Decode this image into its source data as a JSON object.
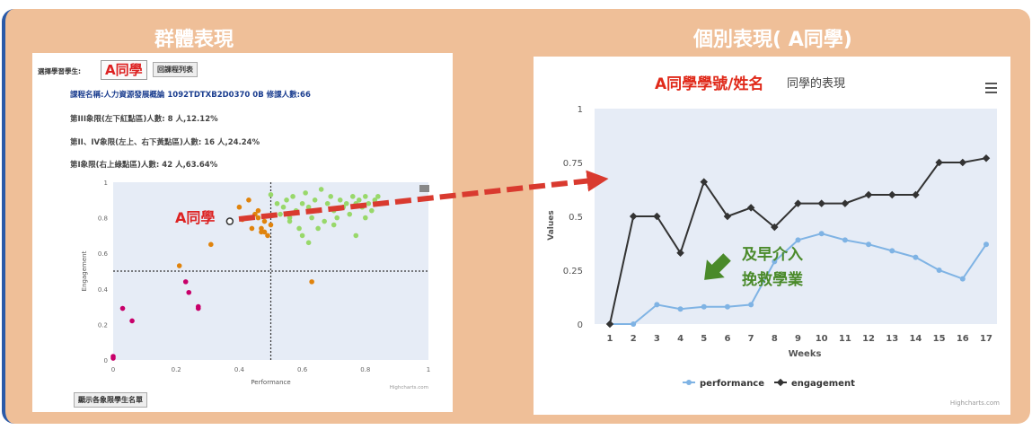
{
  "titles": {
    "group": "群體表現",
    "individual": "個別表現( A同學)"
  },
  "left": {
    "select_label": "選擇學習學生:",
    "selected_student": "A同學",
    "back_button": "回課程列表",
    "course_line": "課程名稱:人力資源發展概論 1092TDTXB2D0370 0B 修課人數:66",
    "stat1": "第III象限(左下紅點區)人數: 8 人,12.12%",
    "stat2": "第II、IV象限(左上、右下黃點區)人數: 16 人,24.24%",
    "stat3": "第I象限(右上綠點區)人數: 42 人,63.64%",
    "bottom_button": "顯示各象限學生名單",
    "credit": "Highcharts.com",
    "point_label": "A同學"
  },
  "right": {
    "overlay_title": "A同學學號/姓名",
    "chart_title_suffix": "同學的表現",
    "callout_line1": "及早介入",
    "callout_line2": "挽救學業",
    "credit": "Highcharts.com"
  },
  "colors": {
    "red": "#c8006a",
    "orange": "#e0830c",
    "green": "#98d86a",
    "performance": "#7fb3e4",
    "engagement": "#333333",
    "arrow": "#d93a2f",
    "callout": "#4a8a2a"
  },
  "chart_data": [
    {
      "type": "scatter",
      "xlabel": "Performance",
      "ylabel": "Engagement",
      "xlim": [
        0,
        1
      ],
      "ylim": [
        0,
        1
      ],
      "xticks": [
        "0",
        "0.2",
        "0.4",
        "0.6",
        "0.8",
        "1"
      ],
      "yticks": [
        "0",
        "0.2",
        "0.4",
        "0.6",
        "0.8",
        "1"
      ],
      "reference_lines": {
        "x": 0.5,
        "y": 0.5
      },
      "series": [
        {
          "color": "red",
          "points": [
            [
              0,
              0.01
            ],
            [
              0,
              0.02
            ],
            [
              0.03,
              0.29
            ],
            [
              0.06,
              0.22
            ],
            [
              0.23,
              0.44
            ],
            [
              0.24,
              0.38
            ],
            [
              0.27,
              0.29
            ],
            [
              0.27,
              0.3
            ]
          ]
        },
        {
          "color": "orange",
          "points": [
            [
              0.21,
              0.53
            ],
            [
              0.31,
              0.65
            ],
            [
              0.4,
              0.86
            ],
            [
              0.43,
              0.9
            ],
            [
              0.45,
              0.82
            ],
            [
              0.46,
              0.8
            ],
            [
              0.47,
              0.74
            ],
            [
              0.47,
              0.72
            ],
            [
              0.48,
              0.78
            ],
            [
              0.49,
              0.7
            ],
            [
              0.5,
              0.76
            ],
            [
              0.44,
              0.74
            ],
            [
              0.46,
              0.84
            ],
            [
              0.48,
              0.72
            ],
            [
              0.63,
              0.44
            ],
            [
              0.41,
              0.79
            ]
          ]
        },
        {
          "color": "green",
          "points": [
            [
              0.5,
              0.93
            ],
            [
              0.52,
              0.88
            ],
            [
              0.53,
              0.82
            ],
            [
              0.54,
              0.86
            ],
            [
              0.55,
              0.9
            ],
            [
              0.56,
              0.8
            ],
            [
              0.57,
              0.92
            ],
            [
              0.58,
              0.84
            ],
            [
              0.59,
              0.74
            ],
            [
              0.6,
              0.88
            ],
            [
              0.61,
              0.94
            ],
            [
              0.62,
              0.86
            ],
            [
              0.63,
              0.8
            ],
            [
              0.64,
              0.9
            ],
            [
              0.65,
              0.84
            ],
            [
              0.66,
              0.96
            ],
            [
              0.67,
              0.78
            ],
            [
              0.68,
              0.88
            ],
            [
              0.69,
              0.92
            ],
            [
              0.7,
              0.84
            ],
            [
              0.71,
              0.8
            ],
            [
              0.72,
              0.9
            ],
            [
              0.73,
              0.86
            ],
            [
              0.74,
              0.88
            ],
            [
              0.75,
              0.82
            ],
            [
              0.76,
              0.92
            ],
            [
              0.77,
              0.88
            ],
            [
              0.78,
              0.9
            ],
            [
              0.79,
              0.86
            ],
            [
              0.8,
              0.92
            ],
            [
              0.81,
              0.88
            ],
            [
              0.82,
              0.84
            ],
            [
              0.83,
              0.9
            ],
            [
              0.84,
              0.92
            ],
            [
              0.85,
              0.88
            ],
            [
              0.56,
              0.78
            ],
            [
              0.6,
              0.7
            ],
            [
              0.62,
              0.66
            ],
            [
              0.65,
              0.74
            ],
            [
              0.7,
              0.76
            ],
            [
              0.77,
              0.7
            ],
            [
              0.8,
              0.8
            ]
          ]
        }
      ],
      "highlight": [
        0.37,
        0.78
      ]
    },
    {
      "type": "line",
      "xlabel": "Weeks",
      "ylabel": "Values",
      "ylim": [
        0,
        1
      ],
      "yticks": [
        "0",
        "0.25",
        "0.5",
        "0.75",
        "1"
      ],
      "categories": [
        "1",
        "2",
        "3",
        "4",
        "5",
        "6",
        "7",
        "8",
        "9",
        "10",
        "11",
        "12",
        "13",
        "14",
        "15",
        "16",
        "17"
      ],
      "series": [
        {
          "name": "performance",
          "values": [
            0,
            0,
            0.09,
            0.07,
            0.08,
            0.08,
            0.09,
            0.29,
            0.39,
            0.42,
            0.39,
            0.37,
            0.34,
            0.31,
            0.25,
            0.21,
            0.37
          ]
        },
        {
          "name": "engagement",
          "values": [
            0,
            0.5,
            0.5,
            0.33,
            0.66,
            0.5,
            0.54,
            0.45,
            0.56,
            0.56,
            0.56,
            0.6,
            0.6,
            0.6,
            0.75,
            0.75,
            0.77
          ]
        }
      ]
    }
  ]
}
